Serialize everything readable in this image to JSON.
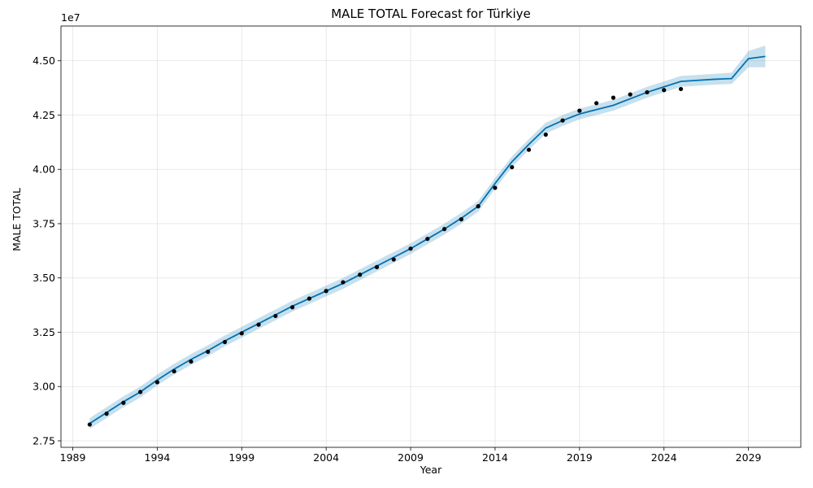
{
  "chart_data": {
    "type": "line",
    "title": "MALE TOTAL Forecast for Türkiye",
    "xlabel": "Year",
    "ylabel": "MALE TOTAL",
    "offset_label": "1e7",
    "x_ticks": [
      1989,
      1994,
      1999,
      2004,
      2009,
      2014,
      2019,
      2024,
      2029
    ],
    "x_tick_labels": [
      "1989",
      "1994",
      "1999",
      "2004",
      "2009",
      "2014",
      "2019",
      "2024",
      "2029"
    ],
    "y_ticks": [
      2.75,
      3.0,
      3.25,
      3.5,
      3.75,
      4.0,
      4.25,
      4.5
    ],
    "y_tick_labels": [
      "2.75",
      "3.00",
      "3.25",
      "3.50",
      "3.75",
      "4.00",
      "4.25",
      "4.50"
    ],
    "xlim": [
      1988.3,
      2032.1
    ],
    "ylim": [
      2.72,
      4.66
    ],
    "grid": true,
    "colors": {
      "forecast_line": "#0072B2",
      "uncertainty_band": "#0072B2",
      "observed_points": "#000000"
    },
    "series": [
      {
        "role": "forecast",
        "x": [
          1990,
          1991,
          1992,
          1993,
          1994,
          1995,
          1996,
          1997,
          1998,
          1999,
          2000,
          2001,
          2002,
          2003,
          2004,
          2005,
          2006,
          2007,
          2008,
          2009,
          2010,
          2011,
          2012,
          2013,
          2014,
          2015,
          2016,
          2017,
          2018,
          2019,
          2020,
          2021,
          2022,
          2023,
          2024,
          2025,
          2026,
          2027,
          2028,
          2029,
          2030
        ],
        "y": [
          2.83,
          2.88,
          2.93,
          2.975,
          3.03,
          3.08,
          3.125,
          3.165,
          3.21,
          3.25,
          3.29,
          3.33,
          3.37,
          3.405,
          3.44,
          3.475,
          3.515,
          3.555,
          3.595,
          3.635,
          3.68,
          3.725,
          3.775,
          3.83,
          3.935,
          4.035,
          4.115,
          4.19,
          4.225,
          4.255,
          4.275,
          4.295,
          4.325,
          4.355,
          4.38,
          4.405,
          4.41,
          4.415,
          4.418,
          4.51,
          4.52
        ],
        "lower": [
          2.805,
          2.855,
          2.905,
          2.95,
          3.005,
          3.055,
          3.1,
          3.14,
          3.185,
          3.225,
          3.265,
          3.305,
          3.345,
          3.38,
          3.415,
          3.45,
          3.49,
          3.53,
          3.57,
          3.61,
          3.655,
          3.7,
          3.75,
          3.805,
          3.91,
          4.01,
          4.09,
          4.165,
          4.2,
          4.23,
          4.25,
          4.27,
          4.3,
          4.33,
          4.355,
          4.38,
          4.385,
          4.39,
          4.393,
          4.47,
          4.47
        ],
        "upper": [
          2.855,
          2.905,
          2.955,
          3.0,
          3.055,
          3.105,
          3.15,
          3.19,
          3.235,
          3.275,
          3.315,
          3.355,
          3.395,
          3.43,
          3.465,
          3.5,
          3.54,
          3.58,
          3.62,
          3.66,
          3.705,
          3.75,
          3.8,
          3.855,
          3.96,
          4.06,
          4.14,
          4.215,
          4.25,
          4.28,
          4.3,
          4.32,
          4.35,
          4.38,
          4.405,
          4.43,
          4.435,
          4.44,
          4.445,
          4.545,
          4.57
        ]
      },
      {
        "role": "observed",
        "x": [
          1990,
          1991,
          1992,
          1993,
          1994,
          1995,
          1996,
          1997,
          1998,
          1999,
          2000,
          2001,
          2002,
          2003,
          2004,
          2005,
          2006,
          2007,
          2008,
          2009,
          2010,
          2011,
          2012,
          2013,
          2014,
          2015,
          2016,
          2017,
          2018,
          2019,
          2020,
          2021,
          2022,
          2023,
          2024,
          2025
        ],
        "y": [
          2.825,
          2.875,
          2.925,
          2.975,
          3.02,
          3.07,
          3.115,
          3.16,
          3.205,
          3.245,
          3.285,
          3.325,
          3.365,
          3.405,
          3.44,
          3.48,
          3.515,
          3.55,
          3.585,
          3.635,
          3.68,
          3.725,
          3.77,
          3.83,
          3.915,
          4.01,
          4.09,
          4.16,
          4.225,
          4.27,
          4.305,
          4.33,
          4.345,
          4.355,
          4.365,
          4.37
        ]
      }
    ]
  }
}
